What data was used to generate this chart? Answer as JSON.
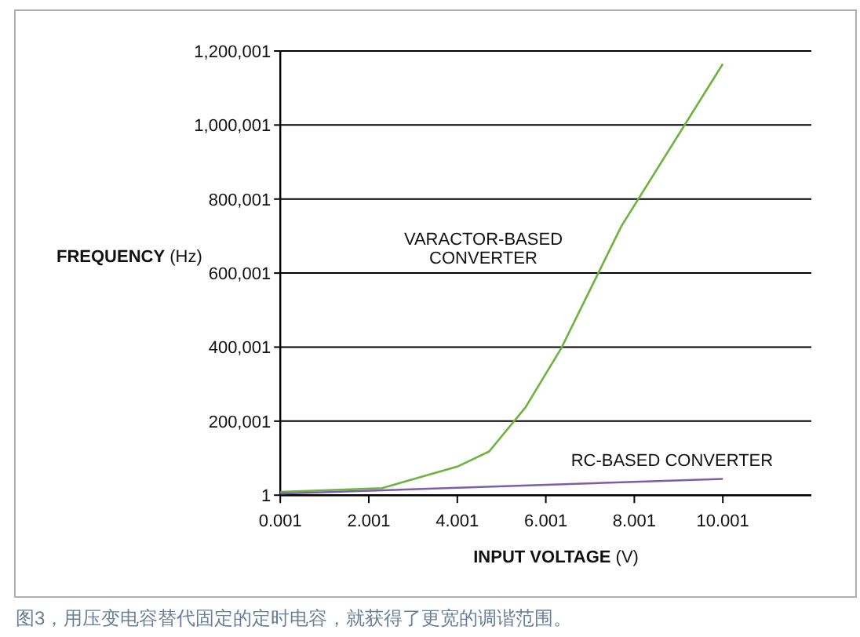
{
  "chart_data": {
    "type": "line",
    "xlabel": "**INPUT VOLTAGE** (V)",
    "ylabel": "**FREQUENCY** (Hz)",
    "annotations": [
      "图3，用压变电容替代固定的定时电容，就获得了更宽的调谐范围。"
    ],
    "xlim": [
      0.001,
      12.001
    ],
    "xticks": [
      0.001,
      2.001,
      4.001,
      6.001,
      8.001,
      10.001
    ],
    "ylim": [
      1,
      1200001
    ],
    "yticks": [
      {
        "value": 1,
        "label": "1"
      },
      {
        "value": 200001,
        "label": "200,001"
      },
      {
        "value": 400001,
        "label": "400,001"
      },
      {
        "value": 600001,
        "label": "600,001"
      },
      {
        "value": 800001,
        "label": "800,001"
      },
      {
        "value": 1000001,
        "label": "1,000,001"
      },
      {
        "value": 1200001,
        "label": "1,200,001"
      }
    ],
    "grid": "y",
    "legend": false,
    "marker": "none",
    "line_style": "solid",
    "series": [
      {
        "name": "VARACTOR-BASED CONVERTER",
        "color": "#6db33f",
        "x": [
          0.001,
          2.3,
          4.0,
          4.72,
          5.54,
          6.35,
          7.71,
          10.0
        ],
        "values": [
          9000,
          19000,
          77000,
          118000,
          237000,
          397000,
          727000,
          1165000
        ]
      },
      {
        "name": "RC-BASED CONVERTER",
        "color": "#7b5ea7",
        "x": [
          0.001,
          10.001
        ],
        "values": [
          4000,
          44000
        ]
      }
    ]
  }
}
